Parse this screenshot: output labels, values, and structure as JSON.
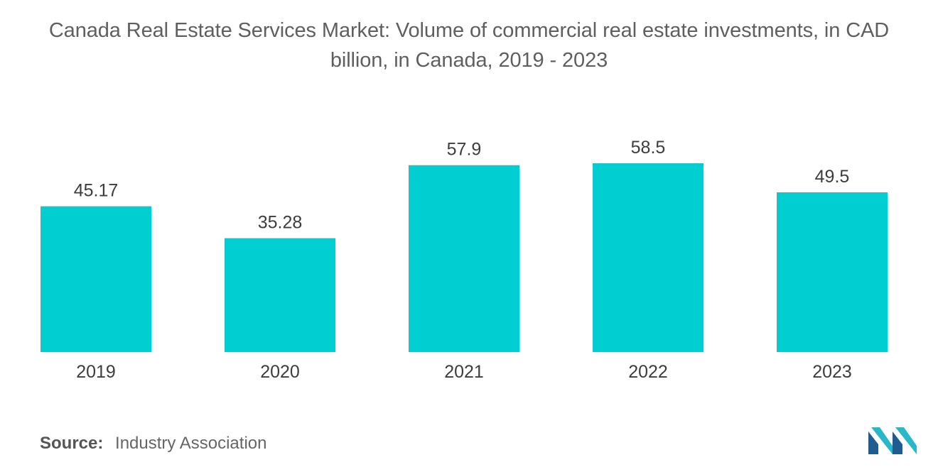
{
  "title_line1": "Canada Real Estate Services Market: Volume of commercial real estate investments, in CAD",
  "title_line2": "billion, in Canada, 2019 - 2023",
  "source_label": "Source:",
  "source_value": "Industry Association",
  "logo_icon": "mordor-intelligence-logo-icon",
  "colors": {
    "bar": "#00CED1",
    "logo_dark": "#1f5c8f",
    "logo_light": "#28b8c8"
  },
  "chart_data": {
    "type": "bar",
    "title": "Canada Real Estate Services Market: Volume of commercial real estate investments, in CAD billion, in Canada, 2019 - 2023",
    "categories": [
      "2019",
      "2020",
      "2021",
      "2022",
      "2023"
    ],
    "values": [
      45.17,
      35.28,
      57.9,
      58.5,
      49.5
    ],
    "value_labels": [
      "45.17",
      "35.28",
      "57.9",
      "58.5",
      "49.5"
    ],
    "xlabel": "",
    "ylabel": "",
    "ylim": [
      0,
      58.5
    ],
    "grid": false,
    "legend": "none"
  }
}
